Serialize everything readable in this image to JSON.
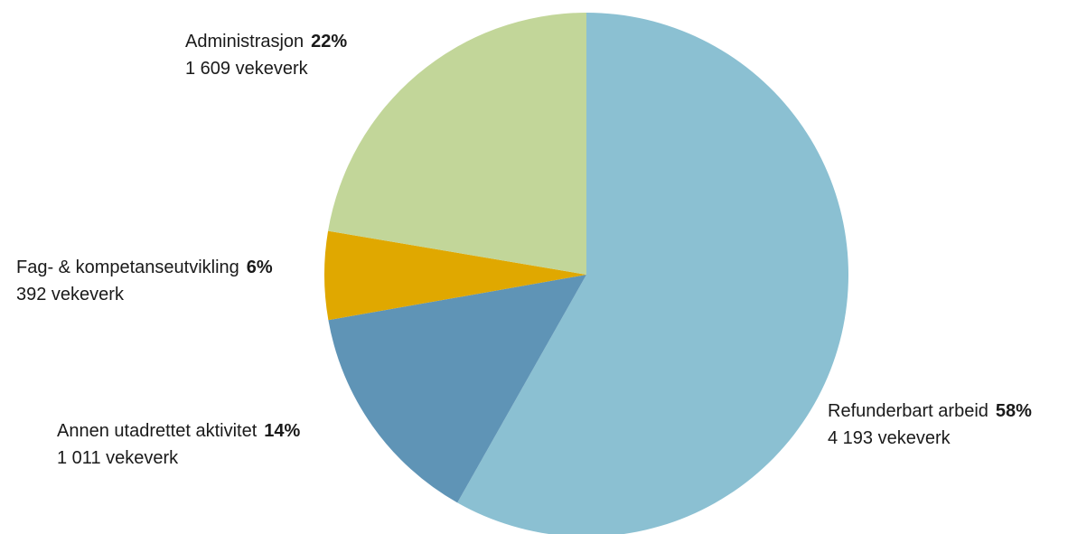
{
  "chart_data": {
    "type": "pie",
    "slices": [
      {
        "name": "Refunderbart arbeid",
        "percent_label": "58%",
        "value": 4193,
        "value_label": "4 193 vekeverk",
        "color": "#8bc0d2"
      },
      {
        "name": "Annen utadrettet aktivitet",
        "percent_label": "14%",
        "value": 1011,
        "value_label": "1 011 vekeverk",
        "color": "#5f94b6"
      },
      {
        "name": "Fag- & kompetanseutvikling",
        "percent_label": "6%",
        "value": 392,
        "value_label": "392 vekeverk",
        "color": "#e0a800"
      },
      {
        "name": "Administrasjon",
        "percent_label": "22%",
        "value": 1609,
        "value_label": "1 609 vekeverk",
        "color": "#c2d699"
      }
    ],
    "start_angle": "12 o'clock",
    "direction": "clockwise",
    "legend": "none"
  }
}
